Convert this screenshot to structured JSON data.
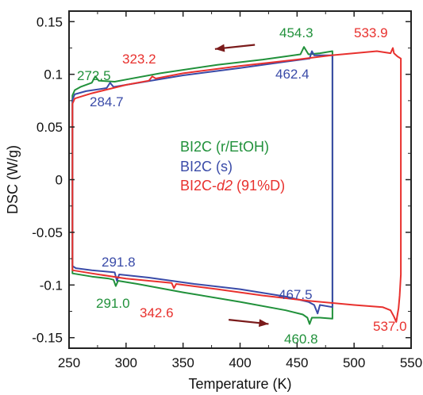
{
  "chart_data": {
    "type": "line",
    "xlabel": "Temperature (K)",
    "ylabel": "DSC (W/g)",
    "xlim": [
      250,
      550
    ],
    "ylim": [
      -0.16,
      0.16
    ],
    "x_ticks": [
      250,
      300,
      350,
      400,
      450,
      500,
      550
    ],
    "x_tick_labels": [
      "250",
      "300",
      "350",
      "400",
      "450",
      "500",
      "550"
    ],
    "y_ticks": [
      -0.15,
      -0.1,
      -0.05,
      0,
      0.05,
      0.1,
      0.15
    ],
    "y_tick_labels": [
      "-0.15",
      "-0.1",
      "-0.05",
      "0",
      "0.05",
      "0.1",
      "0.15"
    ],
    "grid": false,
    "legend_position": "center-right",
    "colors": {
      "green": "#21913b",
      "blue": "#3a4ba8",
      "red": "#e8312e",
      "arrow": "#7a1a1a"
    },
    "series": [
      {
        "name": "BI2C (r/EtOH)",
        "color": "#21913b",
        "lower": [
          [
            253,
            -0.089
          ],
          [
            270,
            -0.092
          ],
          [
            285,
            -0.094
          ],
          [
            289,
            -0.095
          ],
          [
            291,
            -0.101
          ],
          [
            293,
            -0.096
          ],
          [
            310,
            -0.099
          ],
          [
            350,
            -0.107
          ],
          [
            400,
            -0.116
          ],
          [
            440,
            -0.124
          ],
          [
            455,
            -0.128
          ],
          [
            459,
            -0.131
          ],
          [
            461,
            -0.137
          ],
          [
            463,
            -0.131
          ],
          [
            470,
            -0.131
          ],
          [
            481,
            -0.132
          ]
        ],
        "upper": [
          [
            481,
            0.122
          ],
          [
            470,
            0.12
          ],
          [
            460,
            0.119
          ],
          [
            456,
            0.126
          ],
          [
            453,
            0.119
          ],
          [
            420,
            0.114
          ],
          [
            380,
            0.109
          ],
          [
            330,
            0.101
          ],
          [
            300,
            0.095
          ],
          [
            290,
            0.093
          ],
          [
            276,
            0.094
          ],
          [
            273,
            0.098
          ],
          [
            270,
            0.092
          ],
          [
            260,
            0.088
          ],
          [
            255,
            0.085
          ],
          [
            253,
            0.08
          ]
        ]
      },
      {
        "name": "BI2C (s)",
        "color": "#3a4ba8",
        "lower": [
          [
            253,
            -0.082
          ],
          [
            256,
            -0.084
          ],
          [
            270,
            -0.086
          ],
          [
            290,
            -0.088
          ],
          [
            292,
            -0.096
          ],
          [
            294,
            -0.09
          ],
          [
            320,
            -0.093
          ],
          [
            360,
            -0.099
          ],
          [
            400,
            -0.104
          ],
          [
            440,
            -0.111
          ],
          [
            460,
            -0.116
          ],
          [
            465,
            -0.119
          ],
          [
            468,
            -0.127
          ],
          [
            470,
            -0.119
          ],
          [
            481,
            -0.121
          ]
        ],
        "upper": [
          [
            481,
            0.118
          ],
          [
            470,
            0.118
          ],
          [
            465,
            0.118
          ],
          [
            463,
            0.122
          ],
          [
            461,
            0.115
          ],
          [
            440,
            0.112
          ],
          [
            400,
            0.106
          ],
          [
            350,
            0.099
          ],
          [
            300,
            0.09
          ],
          [
            289,
            0.088
          ],
          [
            286,
            0.092
          ],
          [
            283,
            0.087
          ],
          [
            265,
            0.084
          ],
          [
            255,
            0.081
          ],
          [
            253,
            0.076
          ]
        ]
      },
      {
        "name": "BI2C-d2 (91%D)",
        "color": "#e8312e",
        "lower": [
          [
            253,
            -0.086
          ],
          [
            270,
            -0.089
          ],
          [
            300,
            -0.094
          ],
          [
            340,
            -0.098
          ],
          [
            342,
            -0.103
          ],
          [
            344,
            -0.099
          ],
          [
            380,
            -0.104
          ],
          [
            420,
            -0.11
          ],
          [
            460,
            -0.115
          ],
          [
            500,
            -0.119
          ],
          [
            525,
            -0.121
          ],
          [
            532,
            -0.124
          ],
          [
            535,
            -0.13
          ],
          [
            537,
            -0.135
          ],
          [
            539,
            -0.122
          ],
          [
            540,
            -0.11
          ],
          [
            541,
            -0.09
          ]
        ],
        "upper": [
          [
            541,
            0.115
          ],
          [
            538,
            0.117
          ],
          [
            535,
            0.12
          ],
          [
            534,
            0.125
          ],
          [
            532,
            0.12
          ],
          [
            520,
            0.122
          ],
          [
            500,
            0.12
          ],
          [
            480,
            0.118
          ],
          [
            450,
            0.114
          ],
          [
            400,
            0.108
          ],
          [
            350,
            0.101
          ],
          [
            326,
            0.096
          ],
          [
            323,
            0.098
          ],
          [
            320,
            0.094
          ],
          [
            300,
            0.09
          ],
          [
            270,
            0.082
          ],
          [
            255,
            0.077
          ],
          [
            253,
            0.072
          ]
        ]
      }
    ],
    "annotations": [
      {
        "text": "454.3",
        "color": "#21913b",
        "x": 456,
        "y": 0.126
      },
      {
        "text": "533.9",
        "color": "#e8312e",
        "x": 534,
        "y": 0.125
      },
      {
        "text": "272.5",
        "color": "#21913b",
        "x": 273,
        "y": 0.098
      },
      {
        "text": "323.2",
        "color": "#e8312e",
        "x": 323,
        "y": 0.098
      },
      {
        "text": "462.4",
        "color": "#3a4ba8",
        "x": 463,
        "y": 0.122
      },
      {
        "text": "284.7",
        "color": "#3a4ba8",
        "x": 286,
        "y": 0.092
      },
      {
        "text": "291.8",
        "color": "#3a4ba8",
        "x": 292,
        "y": -0.096
      },
      {
        "text": "291.0",
        "color": "#21913b",
        "x": 291,
        "y": -0.101
      },
      {
        "text": "342.6",
        "color": "#e8312e",
        "x": 342,
        "y": -0.103
      },
      {
        "text": "467.5",
        "color": "#3a4ba8",
        "x": 468,
        "y": -0.127
      },
      {
        "text": "460.8",
        "color": "#21913b",
        "x": 461,
        "y": -0.137
      },
      {
        "text": "537.0",
        "color": "#e8312e",
        "x": 537,
        "y": -0.135
      }
    ],
    "arrows": [
      {
        "direction": "left",
        "x_from": 413,
        "x_to": 378,
        "y_from": 0.128,
        "y_to": 0.124
      },
      {
        "direction": "right",
        "x_from": 390,
        "x_to": 425,
        "y_from": -0.133,
        "y_to": -0.137
      }
    ]
  }
}
